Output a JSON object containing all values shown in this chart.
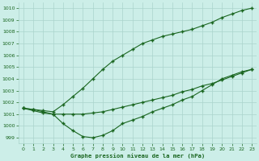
{
  "title": "Graphe pression niveau de la mer (hPa)",
  "bg_color": "#cceee8",
  "grid_color": "#aad4cc",
  "line_color": "#1a6620",
  "xlim": [
    -0.5,
    23.5
  ],
  "ylim": [
    998.5,
    1010.5
  ],
  "yticks": [
    999,
    1000,
    1001,
    1002,
    1003,
    1004,
    1005,
    1006,
    1007,
    1008,
    1009,
    1010
  ],
  "xticks": [
    0,
    1,
    2,
    3,
    4,
    5,
    6,
    7,
    8,
    9,
    10,
    11,
    12,
    13,
    14,
    15,
    16,
    17,
    18,
    19,
    20,
    21,
    22,
    23
  ],
  "line1": [
    1001.5,
    1001.4,
    1001.3,
    1001.2,
    1001.8,
    1002.5,
    1003.2,
    1004.0,
    1004.8,
    1005.5,
    1006.0,
    1006.5,
    1007.0,
    1007.3,
    1007.6,
    1007.8,
    1008.0,
    1008.2,
    1008.5,
    1008.8,
    1009.2,
    1009.5,
    1009.8,
    1010.0
  ],
  "line2": [
    1001.5,
    1001.3,
    1001.1,
    1001.0,
    1000.2,
    999.6,
    999.1,
    999.0,
    999.2,
    999.6,
    1000.2,
    1000.5,
    1000.8,
    1001.2,
    1001.5,
    1001.8,
    1002.2,
    1002.5,
    1003.0,
    1003.5,
    1004.0,
    1004.3,
    1004.6,
    1004.8
  ],
  "line3": [
    1001.5,
    1001.4,
    1001.2,
    1001.0,
    1001.0,
    1001.0,
    1001.0,
    1001.1,
    1001.2,
    1001.4,
    1001.6,
    1001.8,
    1002.0,
    1002.2,
    1002.4,
    1002.6,
    1002.9,
    1003.1,
    1003.4,
    1003.6,
    1003.9,
    1004.2,
    1004.5,
    1004.8
  ]
}
